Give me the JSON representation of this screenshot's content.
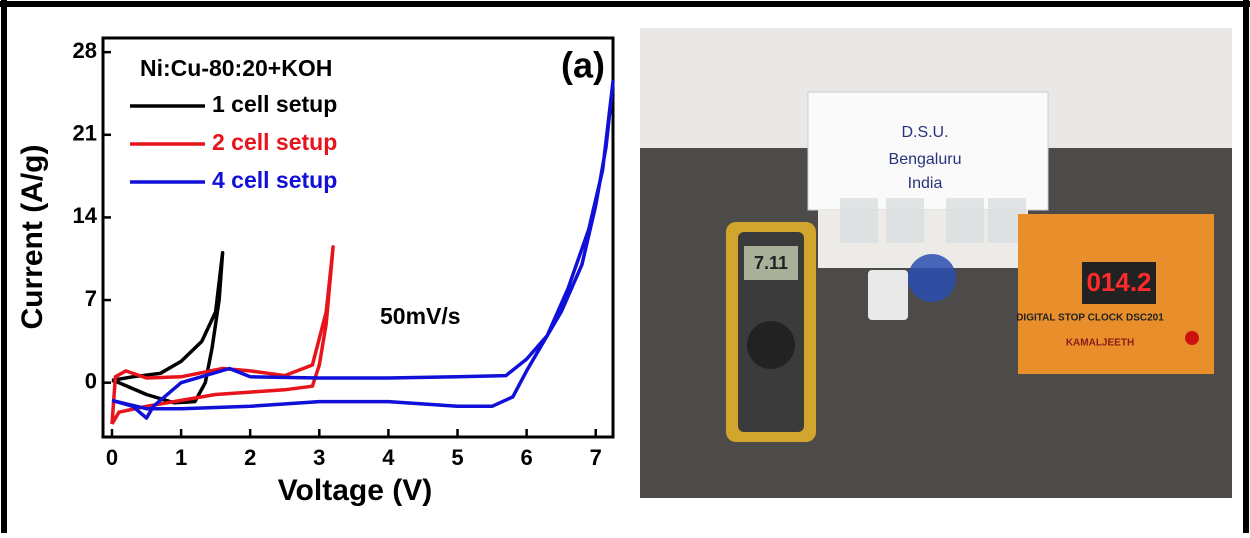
{
  "chart_data": {
    "type": "line",
    "x_label": "Voltage (V)",
    "y_label": "Current (A/g)",
    "annotations": [
      "Ni:Cu-80:20+KOH",
      "50mV/s",
      "(a)"
    ],
    "xlim": [
      -0.13,
      7.25
    ],
    "xticks": [
      0,
      1,
      2,
      3,
      4,
      5,
      6,
      7
    ],
    "ylim": [
      -4.6,
      29.2
    ],
    "yticks": [
      0,
      7,
      14,
      21,
      28
    ],
    "legend": "upper left",
    "grid": false,
    "series": [
      {
        "name": "1 cell setup",
        "color": "#000000",
        "x": [
          0,
          0.3,
          0.7,
          1.0,
          1.3,
          1.5,
          1.6,
          1.55,
          1.45,
          1.35,
          1.2,
          0.9,
          0.5,
          0.1,
          0
        ],
        "values": [
          0.2,
          0.5,
          0.8,
          1.8,
          3.5,
          6,
          11,
          7,
          3,
          0,
          -1.6,
          -1.7,
          -1,
          0,
          0.2
        ]
      },
      {
        "name": "2 cell setup",
        "color": "#e8141b",
        "x": [
          0,
          0.05,
          0.2,
          0.5,
          1,
          1.6,
          2,
          2.5,
          2.9,
          3.1,
          3.2,
          3.1,
          3,
          2.9,
          2.5,
          2,
          1.5,
          1,
          0.5,
          0.1,
          0
        ],
        "values": [
          -3.5,
          0.5,
          1,
          0.4,
          0.5,
          1.2,
          1,
          0.6,
          1.5,
          6,
          11.5,
          5,
          1.5,
          -0.3,
          -0.6,
          -0.8,
          -1,
          -1.5,
          -2,
          -2.5,
          -3.5
        ]
      },
      {
        "name": "4 cell setup",
        "color": "#1010d8",
        "x": [
          0,
          0.3,
          0.5,
          0.6,
          1,
          1.7,
          2,
          3,
          4,
          5,
          5.7,
          6,
          6.3,
          6.6,
          6.9,
          7.1,
          7.25,
          7.15,
          7,
          6.8,
          6.5,
          6.2,
          6,
          5.8,
          5.5,
          5,
          4,
          3,
          2,
          1,
          0.5,
          0
        ],
        "values": [
          -1.5,
          -2,
          -3,
          -2,
          0,
          1.2,
          0.5,
          0.4,
          0.4,
          0.5,
          0.6,
          2,
          4,
          8,
          13,
          18,
          25.5,
          20,
          15,
          10,
          6,
          3,
          1,
          -1.2,
          -2,
          -2,
          -1.6,
          -1.6,
          -2,
          -2.2,
          -2.2,
          -1.5
        ]
      }
    ]
  },
  "photo": {
    "box_text": [
      "D.S.U.",
      "Bengaluru",
      "India"
    ],
    "meter": "7.11",
    "clock_display": "014.2",
    "clock_label": "DIGITAL STOP CLOCK DSC201",
    "brand": "KAMALJEETH"
  }
}
